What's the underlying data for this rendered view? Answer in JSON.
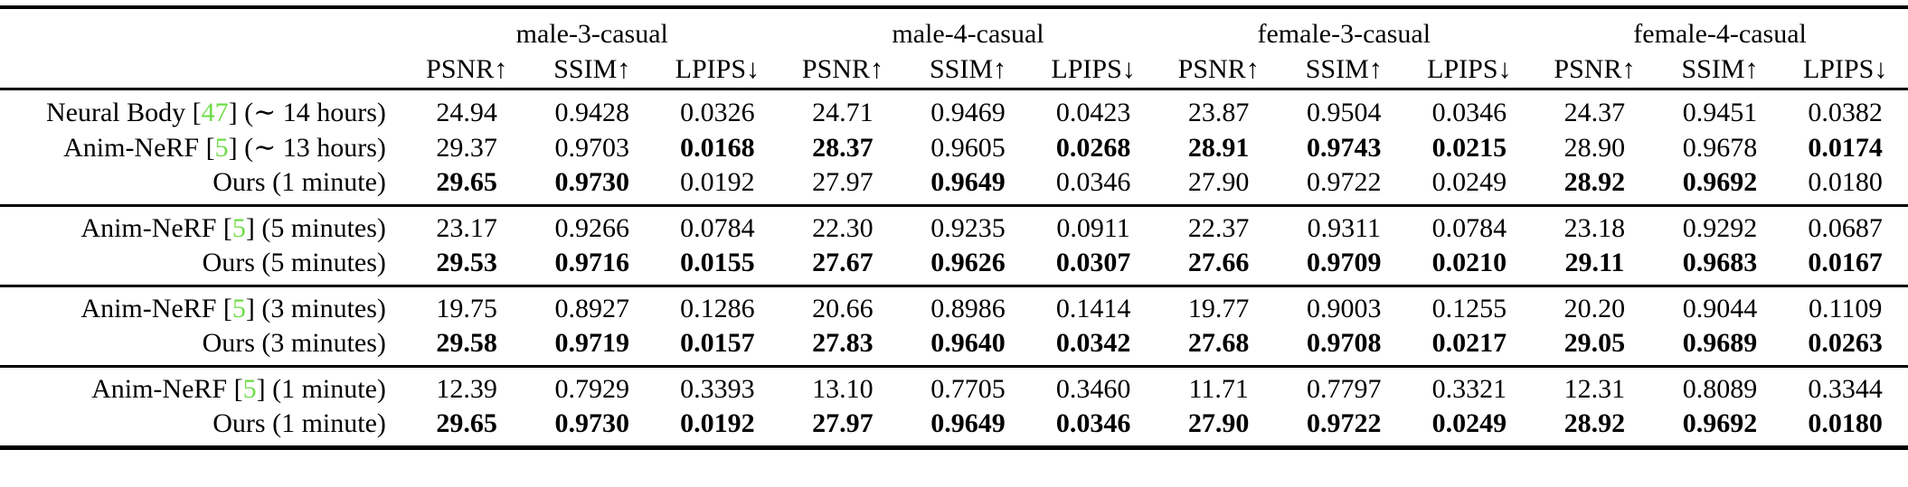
{
  "table": {
    "colors": {
      "citation_green": "#70DD4A"
    },
    "groups": [
      {
        "label": "male-3-casual"
      },
      {
        "label": "male-4-casual"
      },
      {
        "label": "female-3-casual"
      },
      {
        "label": "female-4-casual"
      }
    ],
    "metric_headers": [
      "PSNR↑",
      "SSIM↑",
      "LPIPS↓"
    ],
    "blocks": [
      {
        "rows": [
          {
            "label": {
              "pre": "Neural Body [",
              "cite": "47",
              "post": "] (∼ 14 hours)"
            },
            "values": [
              "24.94",
              "0.9428",
              "0.0326",
              "24.71",
              "0.9469",
              "0.0423",
              "23.87",
              "0.9504",
              "0.0346",
              "24.37",
              "0.9451",
              "0.0382"
            ],
            "bold": [
              false,
              false,
              false,
              false,
              false,
              false,
              false,
              false,
              false,
              false,
              false,
              false
            ]
          },
          {
            "label": {
              "pre": "Anim-NeRF [",
              "cite": "5",
              "post": "] (∼ 13 hours)"
            },
            "values": [
              "29.37",
              "0.9703",
              "0.0168",
              "28.37",
              "0.9605",
              "0.0268",
              "28.91",
              "0.9743",
              "0.0215",
              "28.90",
              "0.9678",
              "0.0174"
            ],
            "bold": [
              false,
              false,
              true,
              true,
              false,
              true,
              true,
              true,
              true,
              false,
              false,
              true
            ]
          },
          {
            "label": {
              "pre": "Ours (1 minute)",
              "cite": "",
              "post": ""
            },
            "values": [
              "29.65",
              "0.9730",
              "0.0192",
              "27.97",
              "0.9649",
              "0.0346",
              "27.90",
              "0.9722",
              "0.0249",
              "28.92",
              "0.9692",
              "0.0180"
            ],
            "bold": [
              true,
              true,
              false,
              false,
              true,
              false,
              false,
              false,
              false,
              true,
              true,
              false
            ]
          }
        ]
      },
      {
        "rows": [
          {
            "label": {
              "pre": "Anim-NeRF [",
              "cite": "5",
              "post": "] (5 minutes)"
            },
            "values": [
              "23.17",
              "0.9266",
              "0.0784",
              "22.30",
              "0.9235",
              "0.0911",
              "22.37",
              "0.9311",
              "0.0784",
              "23.18",
              "0.9292",
              "0.0687"
            ],
            "bold": [
              false,
              false,
              false,
              false,
              false,
              false,
              false,
              false,
              false,
              false,
              false,
              false
            ]
          },
          {
            "label": {
              "pre": "Ours (5 minutes)",
              "cite": "",
              "post": ""
            },
            "values": [
              "29.53",
              "0.9716",
              "0.0155",
              "27.67",
              "0.9626",
              "0.0307",
              "27.66",
              "0.9709",
              "0.0210",
              "29.11",
              "0.9683",
              "0.0167"
            ],
            "bold": [
              true,
              true,
              true,
              true,
              true,
              true,
              true,
              true,
              true,
              true,
              true,
              true
            ]
          }
        ]
      },
      {
        "rows": [
          {
            "label": {
              "pre": "Anim-NeRF [",
              "cite": "5",
              "post": "] (3 minutes)"
            },
            "values": [
              "19.75",
              "0.8927",
              "0.1286",
              "20.66",
              "0.8986",
              "0.1414",
              "19.77",
              "0.9003",
              "0.1255",
              "20.20",
              "0.9044",
              "0.1109"
            ],
            "bold": [
              false,
              false,
              false,
              false,
              false,
              false,
              false,
              false,
              false,
              false,
              false,
              false
            ]
          },
          {
            "label": {
              "pre": "Ours (3 minutes)",
              "cite": "",
              "post": ""
            },
            "values": [
              "29.58",
              "0.9719",
              "0.0157",
              "27.83",
              "0.9640",
              "0.0342",
              "27.68",
              "0.9708",
              "0.0217",
              "29.05",
              "0.9689",
              "0.0263"
            ],
            "bold": [
              true,
              true,
              true,
              true,
              true,
              true,
              true,
              true,
              true,
              true,
              true,
              true
            ]
          }
        ]
      },
      {
        "rows": [
          {
            "label": {
              "pre": "Anim-NeRF [",
              "cite": "5",
              "post": "] (1 minute)"
            },
            "values": [
              "12.39",
              "0.7929",
              "0.3393",
              "13.10",
              "0.7705",
              "0.3460",
              "11.71",
              "0.7797",
              "0.3321",
              "12.31",
              "0.8089",
              "0.3344"
            ],
            "bold": [
              false,
              false,
              false,
              false,
              false,
              false,
              false,
              false,
              false,
              false,
              false,
              false
            ]
          },
          {
            "label": {
              "pre": "Ours (1 minute)",
              "cite": "",
              "post": ""
            },
            "values": [
              "29.65",
              "0.9730",
              "0.0192",
              "27.97",
              "0.9649",
              "0.0346",
              "27.90",
              "0.9722",
              "0.0249",
              "28.92",
              "0.9692",
              "0.0180"
            ],
            "bold": [
              true,
              true,
              true,
              true,
              true,
              true,
              true,
              true,
              true,
              true,
              true,
              true
            ]
          }
        ]
      }
    ]
  }
}
